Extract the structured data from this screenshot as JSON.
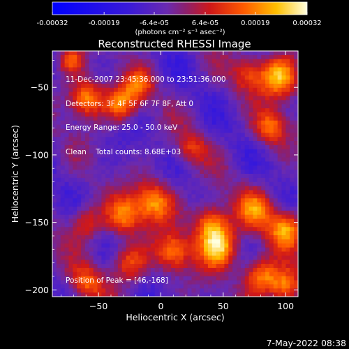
{
  "chart_data": {
    "type": "heatmap",
    "title": "Reconstructed RHESSI Image",
    "xlabel": "Heliocentric X (arcsec)",
    "ylabel": "Heliocentric Y (arcsec)",
    "xlim": [
      -87,
      110
    ],
    "ylim": [
      -205,
      -23
    ],
    "x_ticks": [
      -50,
      0,
      50,
      100
    ],
    "y_ticks": [
      -50,
      -100,
      -150,
      -200
    ],
    "colorbar": {
      "ticks": [
        "-0.00032",
        "-0.00019",
        "-6.4e-05",
        "6.4e-05",
        "0.00019",
        "0.00032"
      ],
      "range": [
        -0.00032,
        0.00032
      ],
      "units_label": "(photons cm⁻² s⁻¹ asec⁻²)"
    },
    "annotations": [
      "11-Dec-2007 23:45:36.000 to 23:51:36.000",
      "Detectors: 3F 4F 5F 6F 7F 8F, Att 0",
      "Energy Range: 25.0 - 50.0 keV",
      "Clean    Total counts: 8.68E+03"
    ],
    "peak_label": "Position of Peak = [46,-168]",
    "peak": {
      "x": 46,
      "y": -168
    },
    "hotspots": [
      {
        "x": -60,
        "y": -58,
        "v": 0.00028,
        "r": 10
      },
      {
        "x": -32,
        "y": -62,
        "v": 0.00024,
        "r": 9
      },
      {
        "x": -18,
        "y": -48,
        "v": 0.00018,
        "r": 8
      },
      {
        "x": -72,
        "y": -30,
        "v": 0.0002,
        "r": 7
      },
      {
        "x": 70,
        "y": -40,
        "v": 0.00016,
        "r": 9
      },
      {
        "x": 95,
        "y": -42,
        "v": 0.0003,
        "r": 11
      },
      {
        "x": 88,
        "y": -80,
        "v": 0.00022,
        "r": 9
      },
      {
        "x": 25,
        "y": -95,
        "v": 0.00014,
        "r": 8
      },
      {
        "x": -5,
        "y": -135,
        "v": 0.00026,
        "r": 11
      },
      {
        "x": -30,
        "y": -145,
        "v": 0.00022,
        "r": 10
      },
      {
        "x": -60,
        "y": -150,
        "v": 0.00018,
        "r": 9
      },
      {
        "x": 40,
        "y": -150,
        "v": 0.00024,
        "r": 10
      },
      {
        "x": 75,
        "y": -140,
        "v": 0.0002,
        "r": 10
      },
      {
        "x": 100,
        "y": -155,
        "v": 0.00026,
        "r": 10
      },
      {
        "x": 46,
        "y": -168,
        "v": 0.00032,
        "r": 11
      },
      {
        "x": 10,
        "y": -172,
        "v": 0.00022,
        "r": 10
      },
      {
        "x": -25,
        "y": -180,
        "v": 0.0002,
        "r": 10
      },
      {
        "x": -60,
        "y": -195,
        "v": 0.00018,
        "r": 9
      },
      {
        "x": 80,
        "y": -190,
        "v": 0.00026,
        "r": 10
      },
      {
        "x": 100,
        "y": -198,
        "v": 0.00024,
        "r": 9
      }
    ]
  },
  "footer": {
    "timestamp": "7-May-2022 08:38"
  }
}
